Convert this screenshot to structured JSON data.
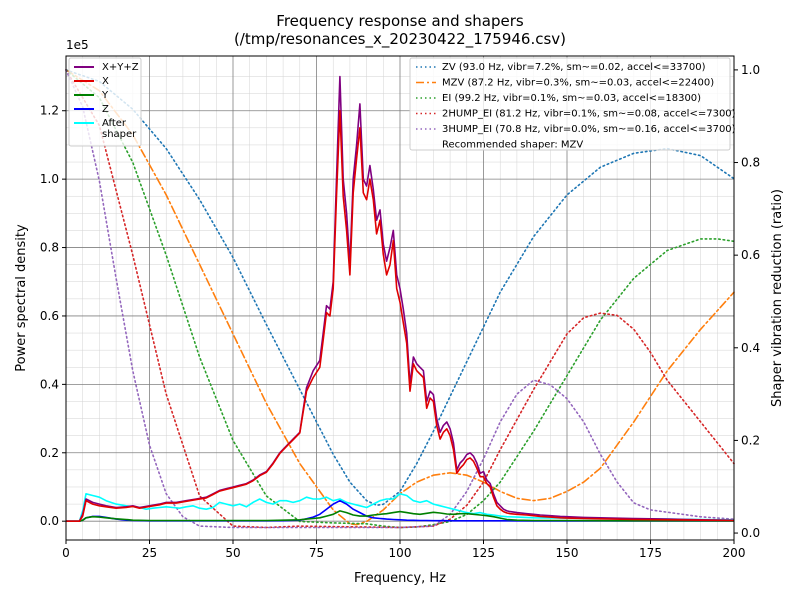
{
  "chart_data": {
    "type": "line",
    "title": "Frequency response and shapers",
    "subtitle": "(/tmp/resonances_x_20230422_175946.csv)",
    "xlabel": "Frequency, Hz",
    "ylabel": "Power spectral density",
    "y2label": "Shaper vibration reduction (ratio)",
    "y_offset_label": "1e5",
    "xlim": [
      0,
      200
    ],
    "ylim": [
      -5500,
      136000
    ],
    "y2lim": [
      -0.015,
      1.03
    ],
    "x_ticks": [
      "0",
      "25",
      "50",
      "75",
      "100",
      "125",
      "150",
      "175",
      "200"
    ],
    "y_ticks": [
      "0.0",
      "0.2",
      "0.4",
      "0.6",
      "0.8",
      "1.0",
      "1.2"
    ],
    "y2_ticks": [
      "0.0",
      "0.2",
      "0.4",
      "0.6",
      "0.8",
      "1.0"
    ],
    "grid": true,
    "legend_left_placement": "top-left",
    "legend_right_placement": "top-right",
    "recommended_label": "Recommended shaper: MZV",
    "psd_series": [
      {
        "name": "X+Y+Z",
        "color": "#800080",
        "x": [
          0,
          4,
          5,
          6,
          8,
          10,
          12,
          15,
          18,
          20,
          22,
          25,
          28,
          30,
          33,
          36,
          39,
          42,
          44,
          46,
          48,
          50,
          52,
          54,
          56,
          58,
          60,
          62,
          64,
          66,
          68,
          70,
          72,
          74,
          76,
          77,
          78,
          79,
          80,
          81,
          82,
          83,
          84,
          85,
          86,
          87,
          88,
          89,
          90,
          91,
          92,
          93,
          94,
          95,
          96,
          97,
          98,
          99,
          100,
          101,
          102,
          103,
          104,
          105,
          106,
          107,
          108,
          109,
          110,
          111,
          112,
          113,
          114,
          115,
          116,
          117,
          118,
          119,
          120,
          121,
          122,
          123,
          124,
          125,
          126,
          127,
          128,
          129,
          130,
          131,
          132,
          133,
          135,
          138,
          140,
          142,
          145,
          148,
          150,
          155,
          160,
          170,
          180,
          190,
          200
        ],
        "y": [
          0,
          0,
          2000,
          6500,
          5500,
          5000,
          4500,
          4000,
          4200,
          4500,
          4000,
          4500,
          5000,
          5500,
          5500,
          6000,
          6500,
          7000,
          8000,
          9000,
          9500,
          10000,
          10500,
          11000,
          12000,
          13500,
          14500,
          17000,
          20000,
          22000,
          24000,
          26000,
          39000,
          44000,
          47000,
          55000,
          63000,
          62000,
          70000,
          100000,
          130000,
          100000,
          90000,
          75000,
          100000,
          110000,
          122000,
          100000,
          98000,
          104000,
          97000,
          88000,
          91000,
          81000,
          76000,
          80000,
          85000,
          72000,
          68000,
          62000,
          55000,
          40000,
          48000,
          46000,
          45000,
          44000,
          35000,
          38000,
          37000,
          30000,
          26000,
          28000,
          29000,
          27000,
          23000,
          15000,
          17000,
          18000,
          19500,
          20000,
          19000,
          17000,
          14000,
          14500,
          12000,
          11000,
          8000,
          5500,
          4500,
          3500,
          3000,
          2800,
          2500,
          2200,
          2000,
          1800,
          1600,
          1400,
          1300,
          1100,
          1000,
          800,
          600,
          400,
          300
        ]
      },
      {
        "name": "X",
        "color": "#e00000",
        "x": [
          0,
          4,
          5,
          6,
          8,
          10,
          12,
          15,
          18,
          20,
          22,
          25,
          28,
          30,
          33,
          36,
          39,
          42,
          44,
          46,
          48,
          50,
          52,
          54,
          56,
          58,
          60,
          62,
          64,
          66,
          68,
          70,
          72,
          74,
          76,
          77,
          78,
          79,
          80,
          81,
          82,
          83,
          84,
          85,
          86,
          87,
          88,
          89,
          90,
          91,
          92,
          93,
          94,
          95,
          96,
          97,
          98,
          99,
          100,
          101,
          102,
          103,
          104,
          105,
          106,
          107,
          108,
          109,
          110,
          111,
          112,
          113,
          114,
          115,
          116,
          117,
          118,
          119,
          120,
          121,
          122,
          123,
          124,
          125,
          126,
          127,
          128,
          129,
          130,
          131,
          132,
          133,
          135,
          138,
          140,
          142,
          145,
          148,
          150,
          155,
          160,
          170,
          180,
          190,
          200
        ],
        "y": [
          0,
          0,
          1500,
          6000,
          5000,
          4500,
          4200,
          3800,
          4000,
          4300,
          3800,
          4300,
          4800,
          5300,
          5300,
          5800,
          6300,
          6800,
          7800,
          8800,
          9300,
          9800,
          10300,
          10800,
          11800,
          13300,
          14300,
          16800,
          19800,
          21800,
          23800,
          25800,
          38000,
          42000,
          45000,
          53000,
          61000,
          60000,
          68000,
          95000,
          120000,
          95000,
          85000,
          72000,
          96000,
          106000,
          115000,
          96000,
          94000,
          100000,
          94000,
          84000,
          88000,
          78000,
          72000,
          75000,
          82000,
          68000,
          64000,
          58000,
          52000,
          38000,
          46000,
          44000,
          43000,
          42000,
          33000,
          36000,
          35000,
          28000,
          24000,
          26000,
          27000,
          25000,
          21000,
          14000,
          15500,
          16500,
          18000,
          18500,
          17500,
          15500,
          13000,
          13000,
          11000,
          10000,
          7000,
          4500,
          3500,
          2800,
          2400,
          2200,
          2000,
          1800,
          1600,
          1400,
          1200,
          1000,
          900,
          800,
          700,
          500,
          400,
          300,
          200
        ]
      },
      {
        "name": "Y",
        "color": "#008000",
        "x": [
          0,
          4,
          5,
          6,
          8,
          10,
          12,
          15,
          18,
          20,
          25,
          30,
          35,
          40,
          45,
          50,
          55,
          60,
          65,
          70,
          72,
          74,
          76,
          78,
          80,
          82,
          84,
          86,
          88,
          90,
          92,
          94,
          96,
          98,
          100,
          102,
          104,
          106,
          108,
          110,
          112,
          114,
          116,
          118,
          120,
          122,
          124,
          126,
          128,
          130,
          132,
          135,
          140,
          150,
          160,
          170,
          180,
          190,
          200
        ],
        "y": [
          0,
          0,
          300,
          1000,
          1300,
          1200,
          1000,
          700,
          500,
          300,
          200,
          200,
          200,
          200,
          200,
          200,
          200,
          200,
          300,
          400,
          600,
          800,
          1000,
          1500,
          2000,
          3000,
          2500,
          1800,
          1500,
          1500,
          1800,
          2000,
          2200,
          2500,
          2800,
          2500,
          2200,
          2000,
          2300,
          2600,
          2400,
          2100,
          2000,
          2200,
          2200,
          2000,
          1800,
          1600,
          1300,
          900,
          500,
          300,
          200,
          200,
          150,
          120,
          100,
          100,
          80
        ]
      },
      {
        "name": "Z",
        "color": "#0000ff",
        "x": [
          0,
          4,
          5,
          6,
          8,
          10,
          12,
          15,
          18,
          20,
          25,
          30,
          35,
          40,
          45,
          50,
          55,
          60,
          65,
          70,
          72,
          74,
          76,
          78,
          80,
          82,
          84,
          86,
          88,
          90,
          92,
          94,
          96,
          98,
          100,
          102,
          104,
          106,
          108,
          110,
          112,
          114,
          116,
          118,
          120,
          125,
          130,
          140,
          150,
          160,
          170,
          180,
          190,
          200
        ],
        "y": [
          0,
          0,
          300,
          1000,
          1400,
          1400,
          1100,
          600,
          300,
          200,
          100,
          100,
          100,
          100,
          100,
          100,
          100,
          100,
          150,
          300,
          700,
          1200,
          2000,
          3500,
          5000,
          6000,
          5000,
          3500,
          2500,
          1500,
          1000,
          800,
          600,
          500,
          400,
          300,
          250,
          200,
          200,
          150,
          150,
          150,
          120,
          120,
          100,
          100,
          100,
          80,
          80,
          60,
          60,
          50,
          50,
          50
        ]
      },
      {
        "name": "After\nshaper",
        "color": "#00ffff",
        "x": [
          0,
          4,
          5,
          6,
          8,
          10,
          12,
          15,
          18,
          20,
          22,
          24,
          26,
          28,
          30,
          32,
          34,
          36,
          38,
          40,
          42,
          44,
          46,
          48,
          50,
          52,
          54,
          56,
          58,
          60,
          62,
          64,
          66,
          68,
          70,
          72,
          74,
          76,
          78,
          80,
          82,
          84,
          86,
          88,
          90,
          92,
          94,
          96,
          98,
          100,
          102,
          104,
          106,
          108,
          110,
          112,
          114,
          116,
          118,
          120,
          122,
          124,
          126,
          128,
          130,
          132,
          135,
          140,
          150,
          160,
          170,
          180,
          190,
          200
        ],
        "y": [
          0,
          0,
          3000,
          8000,
          7500,
          7000,
          6000,
          5000,
          4500,
          4300,
          4000,
          3500,
          3800,
          4000,
          4200,
          4000,
          3800,
          4200,
          4500,
          3800,
          3500,
          4000,
          5500,
          5000,
          4500,
          5000,
          4200,
          5500,
          6500,
          5500,
          5000,
          6000,
          6000,
          5500,
          6000,
          7000,
          6500,
          6500,
          7000,
          6000,
          6500,
          5500,
          5000,
          4500,
          4000,
          5000,
          6000,
          6500,
          6500,
          8000,
          7500,
          6000,
          5500,
          6000,
          5000,
          4500,
          4000,
          3500,
          3000,
          2500,
          2200,
          2500,
          2000,
          1800,
          1500,
          1300,
          1200,
          1000,
          900,
          800,
          700,
          600,
          500,
          400
        ]
      }
    ],
    "shaper_series": [
      {
        "name": "ZV (93.0 Hz, vibr=7.2%, sm~=0.02, accel<=33700)",
        "color": "#1f77b4",
        "style": "dotted",
        "x": [
          0,
          10,
          20,
          30,
          40,
          50,
          60,
          70,
          80,
          85,
          90,
          93,
          95,
          100,
          105,
          110,
          120,
          130,
          140,
          150,
          160,
          170,
          180,
          190,
          200
        ],
        "y": [
          1.0,
          0.975,
          0.915,
          0.83,
          0.72,
          0.595,
          0.45,
          0.31,
          0.17,
          0.11,
          0.07,
          0.06,
          0.062,
          0.09,
          0.15,
          0.22,
          0.37,
          0.52,
          0.64,
          0.73,
          0.79,
          0.82,
          0.83,
          0.815,
          0.765
        ]
      },
      {
        "name": "MZV (87.2 Hz, vibr=0.3%, sm~=0.03, accel<=22400)",
        "color": "#ff7f0e",
        "style": "dashdot",
        "x": [
          0,
          10,
          20,
          30,
          40,
          50,
          60,
          70,
          80,
          85,
          87,
          90,
          95,
          100,
          105,
          110,
          115,
          120,
          125,
          130,
          135,
          140,
          145,
          150,
          155,
          160,
          170,
          180,
          190,
          200
        ],
        "y": [
          1.0,
          0.955,
          0.86,
          0.73,
          0.58,
          0.43,
          0.28,
          0.15,
          0.05,
          0.02,
          0.018,
          0.025,
          0.05,
          0.085,
          0.11,
          0.125,
          0.13,
          0.125,
          0.11,
          0.09,
          0.075,
          0.07,
          0.075,
          0.09,
          0.11,
          0.14,
          0.24,
          0.35,
          0.44,
          0.52
        ]
      },
      {
        "name": "EI (99.2 Hz, vibr=0.1%, sm~=0.03, accel<=18300)",
        "color": "#2ca02c",
        "style": "dotted",
        "x": [
          0,
          10,
          20,
          30,
          40,
          50,
          60,
          70,
          80,
          90,
          95,
          100,
          105,
          110,
          115,
          120,
          125,
          130,
          140,
          150,
          160,
          170,
          180,
          190,
          195,
          200
        ],
        "y": [
          1.0,
          0.94,
          0.8,
          0.6,
          0.38,
          0.2,
          0.08,
          0.025,
          0.022,
          0.02,
          0.015,
          0.012,
          0.013,
          0.018,
          0.025,
          0.04,
          0.07,
          0.11,
          0.22,
          0.34,
          0.46,
          0.55,
          0.61,
          0.635,
          0.635,
          0.63
        ]
      },
      {
        "name": "2HUMP_EI (81.2 Hz, vibr=0.1%, sm~=0.08, accel<=7300)",
        "color": "#d62728",
        "style": "dotted",
        "x": [
          0,
          10,
          20,
          30,
          40,
          50,
          60,
          70,
          80,
          90,
          100,
          110,
          115,
          120,
          125,
          130,
          140,
          150,
          155,
          160,
          165,
          170,
          175,
          180,
          190,
          200
        ],
        "y": [
          1.0,
          0.88,
          0.6,
          0.3,
          0.08,
          0.015,
          0.012,
          0.015,
          0.014,
          0.013,
          0.012,
          0.015,
          0.03,
          0.06,
          0.11,
          0.18,
          0.31,
          0.43,
          0.465,
          0.475,
          0.47,
          0.44,
          0.39,
          0.33,
          0.24,
          0.15
        ]
      },
      {
        "name": "3HUMP_EI (70.8 Hz, vibr=0.0%, sm~=0.16, accel<=3700)",
        "color": "#9467bd",
        "style": "dotted",
        "x": [
          0,
          5,
          10,
          15,
          20,
          25,
          30,
          35,
          40,
          50,
          60,
          70,
          80,
          90,
          100,
          110,
          115,
          120,
          125,
          130,
          135,
          140,
          145,
          150,
          155,
          160,
          165,
          170,
          175,
          180,
          190,
          200
        ],
        "y": [
          1.0,
          0.92,
          0.76,
          0.55,
          0.35,
          0.19,
          0.085,
          0.035,
          0.015,
          0.012,
          0.012,
          0.012,
          0.012,
          0.012,
          0.012,
          0.015,
          0.04,
          0.09,
          0.16,
          0.24,
          0.3,
          0.33,
          0.32,
          0.29,
          0.24,
          0.17,
          0.11,
          0.065,
          0.05,
          0.045,
          0.035,
          0.03
        ]
      }
    ]
  }
}
